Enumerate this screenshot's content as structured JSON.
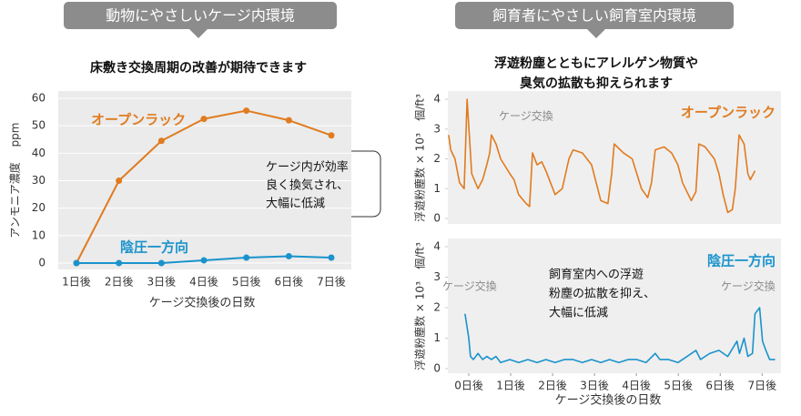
{
  "sections": [
    {
      "header": "動物にやさしいケージ内環境"
    },
    {
      "header": "飼育者にやさしい飼育室内環境",
      "subtitle": [
        "浮遊粉塵とともにアレルゲン物質や",
        "臭気の拡散も抑えられます"
      ]
    }
  ],
  "chart_data": [
    {
      "type": "line",
      "title": "床敷き交換周期の改善が期待できます",
      "y_label": "アンモニア濃度",
      "y_unit": "ppm",
      "x_label": "ケージ交換後の日数",
      "categories": [
        "1日後",
        "2日後",
        "3日後",
        "4日後",
        "5日後",
        "6日後",
        "7日後"
      ],
      "series": [
        {
          "name": "オープンラック",
          "color": "#e07b20",
          "values": [
            0,
            30,
            44.5,
            52.5,
            55.5,
            52,
            46.5
          ]
        },
        {
          "name": "陰圧一方向",
          "color": "#1a93cc",
          "values": [
            0,
            0,
            0,
            1,
            2,
            2.5,
            2
          ]
        }
      ],
      "ylim": [
        0,
        60
      ],
      "yticks": [
        0,
        10,
        20,
        30,
        40,
        50,
        60
      ],
      "grid": true,
      "markers": true,
      "annotations": [
        [
          "ケージ内が効率",
          "良く換気され、",
          "大幅に低減"
        ]
      ]
    },
    {
      "type": "line",
      "y_label": "浮遊粉塵数 × 10³",
      "y_unit": "個/ft³",
      "xlim": [
        -0.5,
        7.45
      ],
      "ylim": [
        0,
        4
      ],
      "yticks": [
        0,
        1,
        2,
        3,
        4
      ],
      "grid": false,
      "markers": false,
      "x": [
        -0.48,
        -0.43,
        -0.33,
        -0.22,
        -0.11,
        -0.04,
        0.07,
        0.22,
        0.33,
        0.43,
        0.5,
        0.54,
        0.65,
        0.76,
        0.98,
        1.08,
        1.19,
        1.37,
        1.45,
        1.52,
        1.63,
        1.74,
        1.84,
        1.95,
        2.06,
        2.23,
        2.39,
        2.49,
        2.71,
        2.93,
        3.04,
        3.15,
        3.32,
        3.41,
        3.47,
        3.69,
        3.9,
        4.01,
        4.12,
        4.27,
        4.36,
        4.45,
        4.66,
        4.84,
        4.99,
        5.1,
        5.31,
        5.42,
        5.49,
        5.64,
        5.86,
        5.97,
        6.07,
        6.18,
        6.29,
        6.36,
        6.45,
        6.57,
        6.66,
        6.72,
        6.83
      ],
      "series": [
        {
          "name": "オープンラック",
          "color": "#e07b20",
          "values": [
            2.8,
            2.3,
            2.0,
            1.2,
            1.0,
            4,
            1.5,
            1.0,
            1.3,
            1.8,
            2.2,
            2.8,
            2.5,
            2.0,
            1.5,
            1.3,
            0.8,
            0.5,
            0.4,
            2.2,
            1.8,
            1.9,
            1.6,
            1.2,
            0.8,
            1.0,
            2.0,
            2.3,
            2.2,
            1.8,
            1.2,
            0.6,
            0.5,
            1.5,
            2.5,
            2.2,
            2.0,
            1.5,
            1.0,
            0.7,
            1.2,
            2.3,
            2.4,
            2.2,
            1.8,
            1.2,
            0.6,
            0.9,
            2.5,
            2.4,
            2.0,
            1.5,
            0.8,
            0.2,
            0.3,
            1.0,
            2.8,
            2.5,
            1.5,
            1.3,
            1.6
          ]
        }
      ],
      "annotations": [
        "ケージ交換"
      ]
    },
    {
      "type": "line",
      "y_label": "浮遊粉塵数 × 10³",
      "y_unit": "個/ft³",
      "x_label": "ケージ交換後の日数",
      "xlim": [
        -0.5,
        7.45
      ],
      "ylim": [
        0,
        4
      ],
      "yticks": [
        0,
        1,
        2,
        3,
        4
      ],
      "grid": false,
      "markers": false,
      "xticks": [
        {
          "value": 0,
          "label": "0日後"
        },
        {
          "value": 1,
          "label": "1日後"
        },
        {
          "value": 2,
          "label": "2日後"
        },
        {
          "value": 3,
          "label": "3日後"
        },
        {
          "value": 4,
          "label": "4日後"
        },
        {
          "value": 5,
          "label": "5日後"
        },
        {
          "value": 6,
          "label": "6日後"
        },
        {
          "value": 7,
          "label": "7日後"
        }
      ],
      "x": [
        -0.09,
        0,
        0.04,
        0.11,
        0.22,
        0.33,
        0.43,
        0.54,
        0.65,
        0.76,
        0.98,
        1.19,
        1.41,
        1.63,
        1.84,
        2.06,
        2.28,
        2.49,
        2.71,
        2.93,
        3.15,
        3.36,
        3.58,
        3.8,
        4.01,
        4.23,
        4.45,
        4.56,
        4.77,
        4.99,
        5.21,
        5.42,
        5.53,
        5.75,
        5.97,
        6.18,
        6.4,
        6.46,
        6.57,
        6.66,
        6.77,
        6.83,
        6.94,
        7.01,
        7.09,
        7.18,
        7.31
      ],
      "series": [
        {
          "name": "陰圧一方向",
          "color": "#1a93cc",
          "values": [
            1.8,
            1.0,
            0.4,
            0.3,
            0.5,
            0.3,
            0.4,
            0.3,
            0.4,
            0.2,
            0.3,
            0.2,
            0.3,
            0.2,
            0.3,
            0.2,
            0.3,
            0.3,
            0.2,
            0.3,
            0.2,
            0.3,
            0.2,
            0.3,
            0.3,
            0.2,
            0.5,
            0.3,
            0.3,
            0.2,
            0.4,
            0.6,
            0.3,
            0.5,
            0.6,
            0.4,
            0.9,
            0.5,
            1.0,
            0.4,
            0.5,
            1.8,
            2.0,
            0.9,
            0.6,
            0.3,
            0.3
          ]
        }
      ],
      "annotations": [
        "ケージ交換",
        "ケージ交換",
        [
          "飼育室内への浮遊",
          "粉塵の拡散を抑え、",
          "大幅に低減"
        ]
      ]
    }
  ]
}
